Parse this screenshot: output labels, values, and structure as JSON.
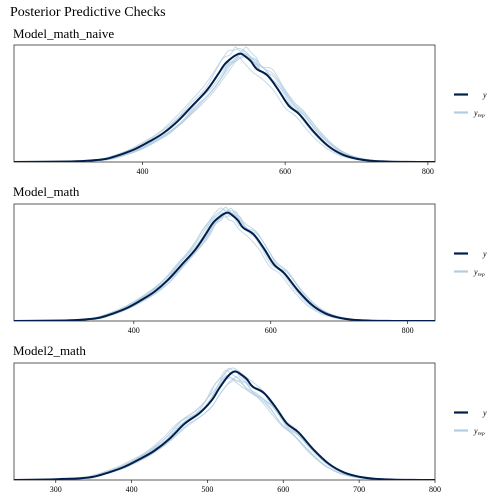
{
  "figure": {
    "title": "Posterior Predictive Checks"
  },
  "legend": {
    "y_label": "y",
    "yrep_label": "y",
    "yrep_sub": "rep",
    "placement": "right"
  },
  "colors": {
    "y": "#011f4b",
    "yrep": "#b3cde0",
    "axis": "#333333",
    "background": "#ffffff"
  },
  "chart_data": [
    {
      "type": "area",
      "title": "Model_math_naive",
      "xlim": [
        220,
        810
      ],
      "ylim": [
        0,
        1.08
      ],
      "xticks": [
        400,
        600,
        800
      ],
      "grid": false,
      "y_curve": {
        "name": "y",
        "x": [
          220,
          300,
          330,
          350,
          370,
          390,
          410,
          430,
          450,
          470,
          490,
          505,
          515,
          525,
          532,
          538,
          545,
          552,
          560,
          575,
          590,
          605,
          620,
          640,
          660,
          680,
          700,
          720,
          745,
          770,
          810
        ],
        "y": [
          0,
          0.005,
          0.015,
          0.03,
          0.07,
          0.12,
          0.19,
          0.27,
          0.38,
          0.52,
          0.66,
          0.8,
          0.9,
          0.96,
          0.99,
          1.0,
          0.97,
          0.93,
          0.86,
          0.8,
          0.67,
          0.52,
          0.44,
          0.28,
          0.15,
          0.07,
          0.03,
          0.012,
          0.004,
          0.001,
          0
        ]
      },
      "yrep_shift": 2,
      "yrep_count": 8
    },
    {
      "type": "area",
      "title": "Model_math",
      "xlim": [
        225,
        840
      ],
      "ylim": [
        0,
        1.08
      ],
      "xticks": [
        400,
        600,
        800
      ],
      "grid": false,
      "y_curve": {
        "name": "y",
        "x": [
          225,
          300,
          330,
          350,
          370,
          390,
          410,
          430,
          450,
          470,
          490,
          505,
          515,
          525,
          532,
          538,
          545,
          552,
          560,
          575,
          590,
          605,
          620,
          640,
          660,
          680,
          700,
          720,
          745,
          770,
          800,
          840
        ],
        "y": [
          0,
          0.005,
          0.015,
          0.03,
          0.07,
          0.12,
          0.19,
          0.27,
          0.38,
          0.52,
          0.66,
          0.8,
          0.9,
          0.96,
          0.99,
          1.0,
          0.97,
          0.93,
          0.86,
          0.8,
          0.67,
          0.52,
          0.44,
          0.28,
          0.15,
          0.07,
          0.03,
          0.012,
          0.004,
          0.001,
          0,
          0
        ]
      },
      "yrep_shift": 0,
      "yrep_count": 8
    },
    {
      "type": "area",
      "title": "Model2_math",
      "xlim": [
        245,
        800
      ],
      "ylim": [
        0,
        1.08
      ],
      "xticks": [
        300,
        400,
        500,
        600,
        700,
        800
      ],
      "grid": false,
      "y_curve": {
        "name": "y",
        "x": [
          245,
          290,
          310,
          330,
          350,
          370,
          390,
          410,
          430,
          450,
          470,
          490,
          505,
          515,
          525,
          532,
          538,
          545,
          552,
          560,
          575,
          590,
          605,
          620,
          640,
          660,
          680,
          700,
          720,
          745,
          770,
          800
        ],
        "y": [
          0,
          0.005,
          0.01,
          0.015,
          0.03,
          0.07,
          0.12,
          0.19,
          0.27,
          0.38,
          0.52,
          0.62,
          0.73,
          0.84,
          0.94,
          0.99,
          1.0,
          0.97,
          0.93,
          0.86,
          0.8,
          0.67,
          0.52,
          0.44,
          0.28,
          0.15,
          0.07,
          0.03,
          0.012,
          0.004,
          0.001,
          0
        ]
      },
      "yrep_shift": -2,
      "yrep_count": 8
    }
  ]
}
